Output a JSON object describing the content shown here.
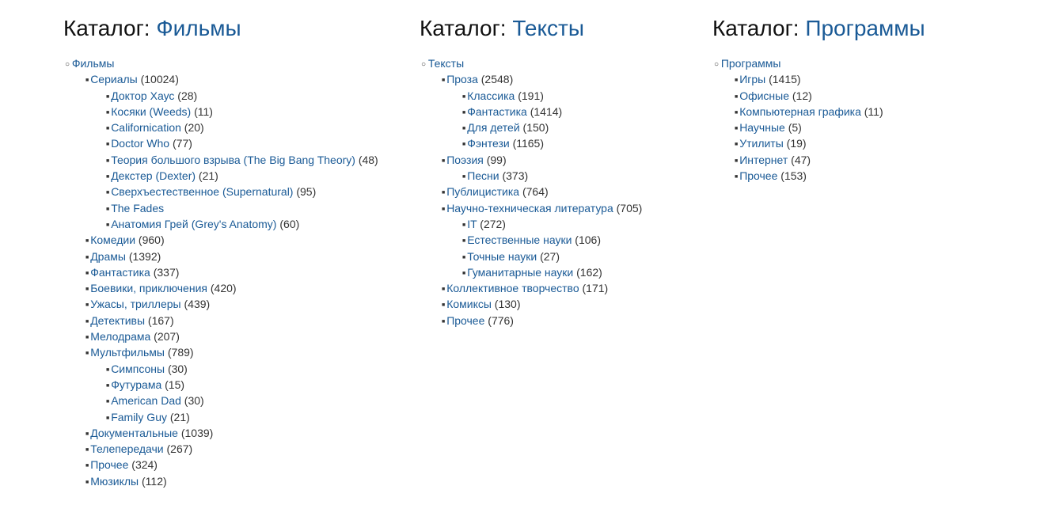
{
  "colors": {
    "background": "#ffffff",
    "text": "#333333",
    "link": "#1a5a96",
    "heading": "#111111"
  },
  "font_family": "Arial, Helvetica, sans-serif",
  "font_size_body": 14,
  "font_size_heading": 28,
  "heading_prefix": "Каталог:",
  "columns": [
    {
      "title_link": "Фильмы",
      "root": {
        "label": "Фильмы",
        "children": [
          {
            "label": "Сериалы",
            "count": 10024,
            "children": [
              {
                "label": "Доктор Хаус",
                "count": 28
              },
              {
                "label": "Косяки (Weeds)",
                "count": 11
              },
              {
                "label": "Californication",
                "count": 20
              },
              {
                "label": "Doctor Who",
                "count": 77
              },
              {
                "label": "Теория большого взрыва (The Big Bang Theory)",
                "count": 48
              },
              {
                "label": "Декстер (Dexter)",
                "count": 21
              },
              {
                "label": "Сверхъестественное (Supernatural)",
                "count": 95
              },
              {
                "label": "The Fades"
              },
              {
                "label": "Анатомия Грей (Grey's Anatomy)",
                "count": 60
              }
            ]
          },
          {
            "label": "Комедии",
            "count": 960
          },
          {
            "label": "Драмы",
            "count": 1392
          },
          {
            "label": "Фантастика",
            "count": 337
          },
          {
            "label": "Боевики, приключения",
            "count": 420
          },
          {
            "label": "Ужасы, триллеры",
            "count": 439
          },
          {
            "label": "Детективы",
            "count": 167
          },
          {
            "label": "Мелодрама",
            "count": 207
          },
          {
            "label": "Мультфильмы",
            "count": 789,
            "children": [
              {
                "label": "Симпсоны",
                "count": 30
              },
              {
                "label": "Футурама",
                "count": 15
              },
              {
                "label": "American Dad",
                "count": 30
              },
              {
                "label": "Family Guy",
                "count": 21
              }
            ]
          },
          {
            "label": "Документальные",
            "count": 1039
          },
          {
            "label": "Телепередачи",
            "count": 267
          },
          {
            "label": "Прочее",
            "count": 324
          },
          {
            "label": "Мюзиклы",
            "count": 112
          }
        ]
      }
    },
    {
      "title_link": "Тексты",
      "root": {
        "label": "Тексты",
        "children": [
          {
            "label": "Проза",
            "count": 2548,
            "children": [
              {
                "label": "Классика",
                "count": 191
              },
              {
                "label": "Фантастика",
                "count": 1414
              },
              {
                "label": "Для детей",
                "count": 150
              },
              {
                "label": "Фэнтези",
                "count": 1165
              }
            ]
          },
          {
            "label": "Поэзия",
            "count": 99,
            "children": [
              {
                "label": "Песни",
                "count": 373
              }
            ]
          },
          {
            "label": "Публицистика",
            "count": 764
          },
          {
            "label": "Научно-техническая литература",
            "count": 705,
            "children": [
              {
                "label": "IT",
                "count": 272
              },
              {
                "label": "Естественные науки",
                "count": 106
              },
              {
                "label": "Точные науки",
                "count": 27
              },
              {
                "label": "Гуманитарные науки",
                "count": 162
              }
            ]
          },
          {
            "label": "Коллективное творчество",
            "count": 171
          },
          {
            "label": "Комиксы",
            "count": 130
          },
          {
            "label": "Прочее",
            "count": 776
          }
        ]
      }
    },
    {
      "title_link": "Программы",
      "root": {
        "label": "Программы",
        "children": [
          {
            "label": "Игры",
            "count": 1415
          },
          {
            "label": "Офисные",
            "count": 12
          },
          {
            "label": "Компьютерная графика",
            "count": 11
          },
          {
            "label": "Научные",
            "count": 5
          },
          {
            "label": "Утилиты",
            "count": 19
          },
          {
            "label": "Интернет",
            "count": 47
          },
          {
            "label": "Прочее",
            "count": 153
          }
        ]
      }
    }
  ]
}
